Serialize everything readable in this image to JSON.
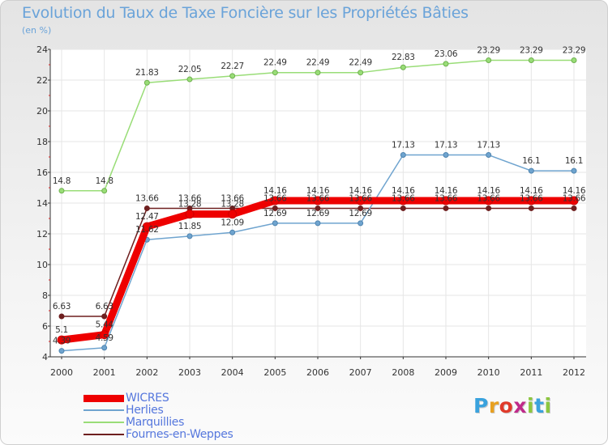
{
  "title": "Evolution du Taux de Taxe Foncière sur les Propriétés Bâties",
  "subtitle": "(en %)",
  "logo": {
    "text": "Proxiti",
    "colors": [
      "#3aa2dd",
      "#e8a020",
      "#e03a2a",
      "#c02a8a",
      "#8cc63f",
      "#3aa2dd",
      "#8cc63f"
    ]
  },
  "chart_data": {
    "type": "line",
    "title": "Evolution du Taux de Taxe Foncière sur les Propriétés Bâties",
    "ylabel": "(en %)",
    "xlabel": "",
    "ylim": [
      4,
      24
    ],
    "yticks": [
      4,
      6,
      8,
      10,
      12,
      14,
      16,
      18,
      20,
      22,
      24
    ],
    "x": [
      2000,
      2001,
      2002,
      2003,
      2004,
      2005,
      2006,
      2007,
      2008,
      2009,
      2010,
      2011,
      2012
    ],
    "series": [
      {
        "name": "Fournes-en-Weppes",
        "color": "#6e1f1f",
        "values": [
          6.63,
          6.63,
          13.66,
          13.66,
          13.66,
          13.66,
          13.66,
          13.66,
          13.66,
          13.66,
          13.66,
          13.66,
          13.66
        ],
        "labels": [
          "6.63",
          "6.63",
          "13.66",
          "13.66",
          "13.66",
          "13.66",
          "13.66",
          "13.66",
          "13.66",
          "13.66",
          "13.66",
          "13.66",
          "13.66"
        ]
      },
      {
        "name": "Marquillies",
        "color": "#99dd77",
        "values": [
          14.8,
          14.8,
          21.83,
          22.05,
          22.27,
          22.49,
          22.49,
          22.49,
          22.83,
          23.06,
          23.29,
          23.29,
          23.29
        ],
        "labels": [
          "14.8",
          "14.8",
          "21.83",
          "22.05",
          "22.27",
          "22.49",
          "22.49",
          "22.49",
          "22.83",
          "23.06",
          "23.29",
          "23.29",
          "23.29"
        ]
      },
      {
        "name": "Herlies",
        "color": "#6fa4cf",
        "values": [
          4.39,
          4.59,
          11.62,
          11.85,
          12.09,
          12.69,
          12.69,
          12.69,
          17.13,
          17.13,
          17.13,
          16.1,
          16.1
        ],
        "labels": [
          "4.39",
          "4.59",
          "11.62",
          "11.85",
          "12.09",
          "12.69",
          "12.69",
          "12.69",
          "17.13",
          "17.13",
          "17.13",
          "16.1",
          "16.1"
        ]
      },
      {
        "name": "WICRES",
        "color": "#ee0000",
        "values": [
          5.1,
          5.44,
          12.47,
          13.28,
          13.28,
          14.16,
          14.16,
          14.16,
          14.16,
          14.16,
          14.16,
          14.16,
          14.16
        ],
        "labels": [
          "5.1",
          "5.44",
          "12.47",
          "13.28",
          "13.28",
          "14.16",
          "14.16",
          "14.16",
          "14.16",
          "14.16",
          "14.16",
          "14.16",
          "14.16"
        ]
      }
    ],
    "legend": [
      {
        "name": "WICRES",
        "color": "#ee0000"
      },
      {
        "name": "Herlies",
        "color": "#6fa4cf"
      },
      {
        "name": "Marquillies",
        "color": "#99dd77"
      },
      {
        "name": "Fournes-en-Weppes",
        "color": "#6e1f1f"
      }
    ],
    "legend_position": "bottom-left"
  }
}
